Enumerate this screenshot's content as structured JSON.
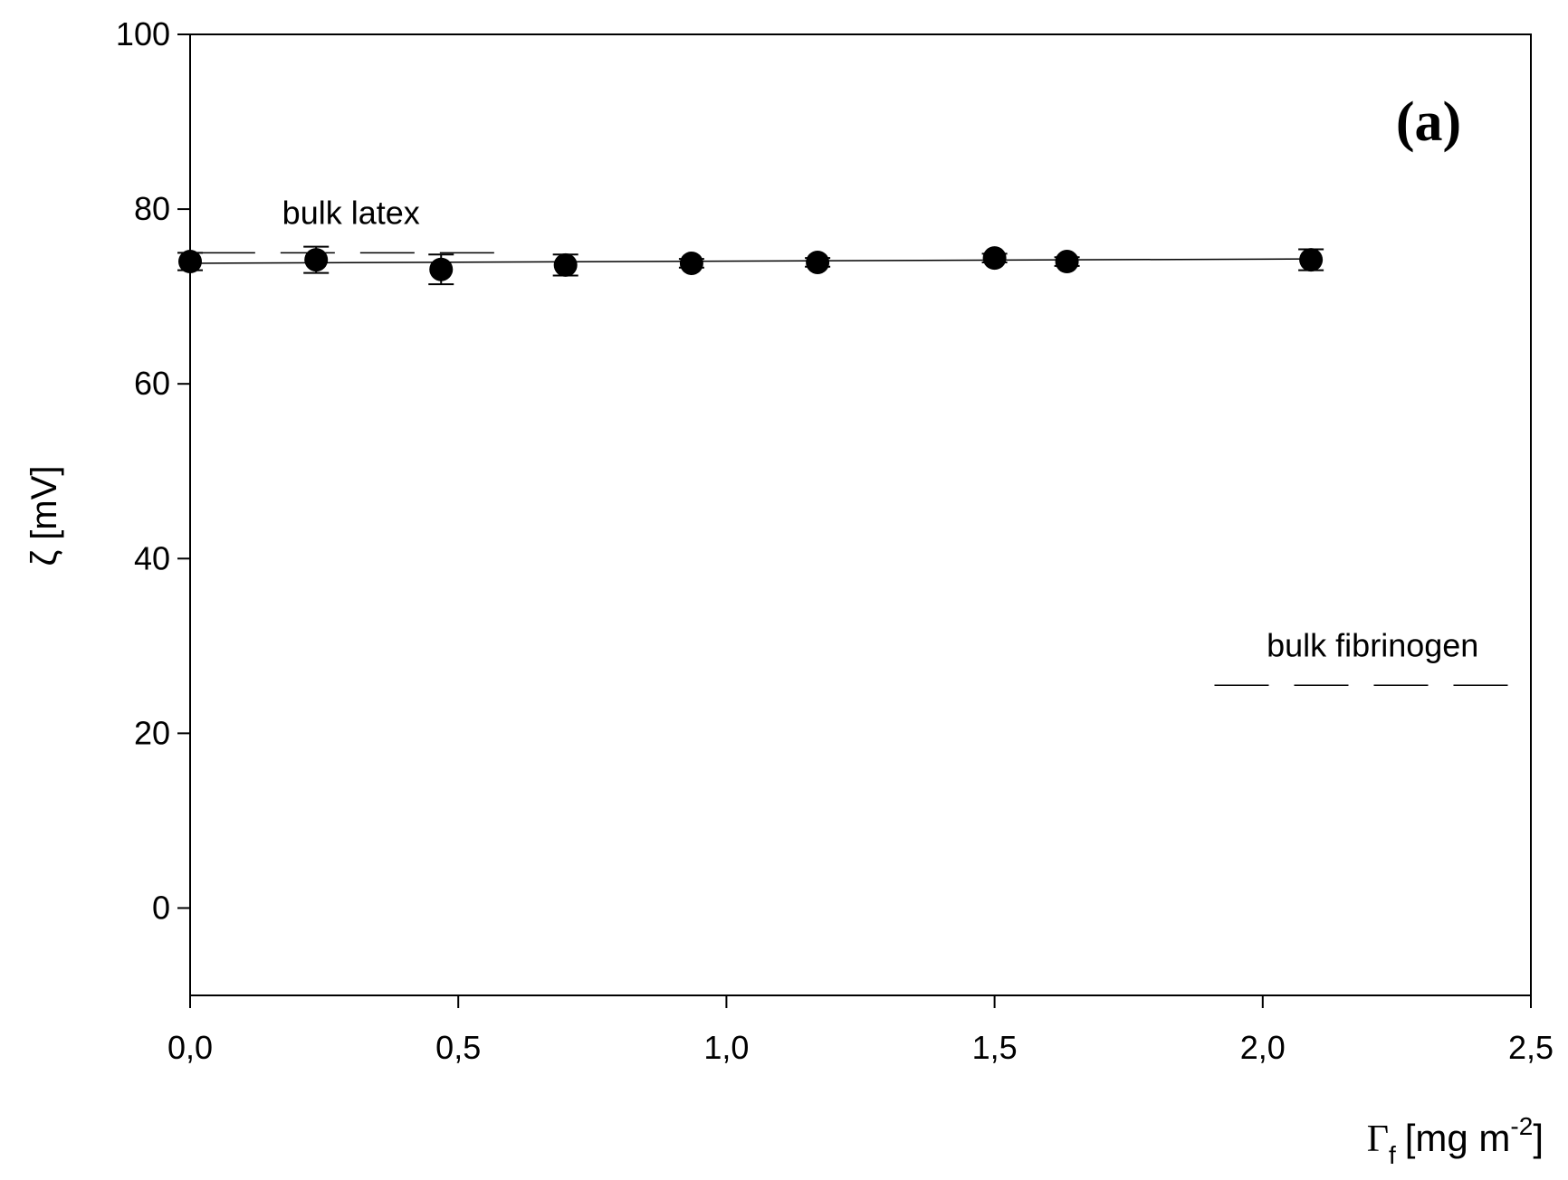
{
  "chart_data": {
    "type": "scatter",
    "panel_label": "(a)",
    "y_label": "ζ [mV]",
    "x_label": {
      "symbol": "Γ",
      "subscript": "f",
      "unit": "[mg m",
      "superscript": "-2",
      "close": "]"
    },
    "xlim": [
      0,
      2.5
    ],
    "ylim": [
      -10,
      100
    ],
    "xticks": [
      {
        "value": 0,
        "label": "0,0"
      },
      {
        "value": 0.5,
        "label": "0,5"
      },
      {
        "value": 1,
        "label": "1,0"
      },
      {
        "value": 1.5,
        "label": "1,5"
      },
      {
        "value": 2,
        "label": "2,0"
      },
      {
        "value": 2.5,
        "label": "2,5"
      }
    ],
    "yticks": [
      0,
      20,
      40,
      60,
      80,
      100
    ],
    "grid": false,
    "series": [
      {
        "color": "#000000",
        "x": [
          0,
          0.235,
          0.468,
          0.7,
          0.935,
          1.17,
          1.5,
          1.635,
          2.09
        ],
        "values": [
          74,
          74.2,
          73.1,
          73.6,
          73.8,
          73.9,
          74.4,
          74,
          74.2
        ],
        "errors": [
          1,
          1.5,
          1.7,
          1.2,
          0.5,
          0.5,
          0.5,
          0.5,
          1.2
        ]
      }
    ],
    "fit_line": {
      "x": [
        0,
        2.09
      ],
      "values": [
        73.8,
        74.3
      ]
    },
    "reference_lines": [
      {
        "label": "bulk latex",
        "y": 75,
        "x": [
          0.02,
          0.58
        ]
      },
      {
        "label": "bulk fibrinogen",
        "y": 25.5,
        "x": [
          1.91,
          2.5
        ]
      }
    ]
  }
}
